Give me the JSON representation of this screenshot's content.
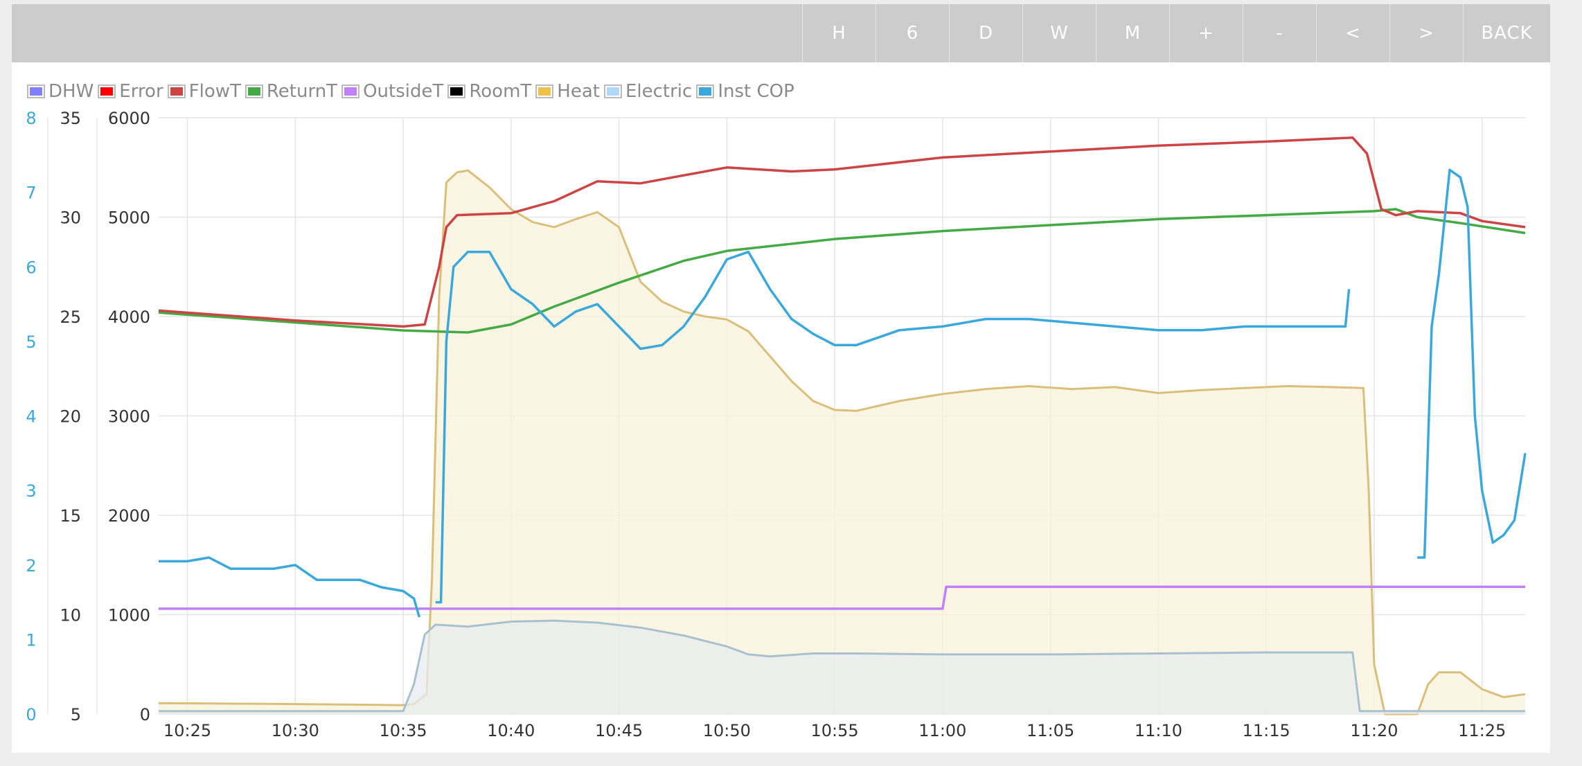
{
  "toolbar": {
    "buttons": [
      "H",
      "6",
      "D",
      "W",
      "M",
      "+",
      "-",
      "<",
      ">",
      "BACK"
    ]
  },
  "legend": [
    {
      "label": "DHW",
      "color": "#8080ff"
    },
    {
      "label": "Error",
      "color": "#ff0000"
    },
    {
      "label": "FlowT",
      "color": "#cc4444"
    },
    {
      "label": "ReturnT",
      "color": "#44aa44"
    },
    {
      "label": "OutsideT",
      "color": "#c080ff"
    },
    {
      "label": "RoomT",
      "color": "#000000"
    },
    {
      "label": "Heat",
      "color": "#eec14a"
    },
    {
      "label": "Electric",
      "color": "#b0d8f8"
    },
    {
      "label": "Inst COP",
      "color": "#3aa8dd"
    }
  ],
  "chart_data": {
    "type": "line",
    "grid": true,
    "legend_position": "top-left",
    "x_ticks": [
      "10:25",
      "10:30",
      "10:35",
      "10:40",
      "10:45",
      "10:50",
      "10:55",
      "11:00",
      "11:05",
      "11:10",
      "11:15",
      "11:20",
      "11:25"
    ],
    "x_range": [
      "10:23:40",
      "11:27:00"
    ],
    "axes": {
      "cop": {
        "ticks": [
          "0",
          "1",
          "2",
          "3",
          "4",
          "5",
          "6",
          "7",
          "8"
        ],
        "range": [
          0,
          8
        ],
        "color": "#3aa8dd"
      },
      "temp": {
        "ticks": [
          "5",
          "10",
          "15",
          "20",
          "25",
          "30",
          "35"
        ],
        "range": [
          5,
          35
        ]
      },
      "power": {
        "ticks": [
          "0",
          "1000",
          "2000",
          "3000",
          "4000",
          "5000",
          "6000"
        ],
        "range": [
          0,
          6000
        ]
      }
    },
    "series": [
      {
        "name": "Heat",
        "axis": "power",
        "style": "area",
        "color": "#d9bf7a",
        "fill": "#faf1db",
        "points": [
          [
            "10:23:40",
            110
          ],
          [
            "10:30",
            100
          ],
          [
            "10:35",
            90
          ],
          [
            "10:35:30",
            100
          ],
          [
            "10:36:05",
            200
          ],
          [
            "10:36:20",
            1350
          ],
          [
            "10:36:40",
            4200
          ],
          [
            "10:37",
            5350
          ],
          [
            "10:37:30",
            5450
          ],
          [
            "10:38",
            5470
          ],
          [
            "10:39",
            5300
          ],
          [
            "10:40",
            5080
          ],
          [
            "10:41",
            4950
          ],
          [
            "10:42",
            4900
          ],
          [
            "10:43",
            4980
          ],
          [
            "10:44",
            5050
          ],
          [
            "10:45",
            4900
          ],
          [
            "10:46",
            4350
          ],
          [
            "10:47",
            4150
          ],
          [
            "10:48",
            4050
          ],
          [
            "10:49",
            4000
          ],
          [
            "10:50",
            3970
          ],
          [
            "10:51",
            3850
          ],
          [
            "10:52",
            3600
          ],
          [
            "10:53",
            3350
          ],
          [
            "10:54",
            3150
          ],
          [
            "10:55",
            3060
          ],
          [
            "10:56",
            3050
          ],
          [
            "10:58",
            3150
          ],
          [
            "11:00",
            3220
          ],
          [
            "11:02",
            3270
          ],
          [
            "11:04",
            3300
          ],
          [
            "11:06",
            3270
          ],
          [
            "11:08",
            3290
          ],
          [
            "11:10",
            3230
          ],
          [
            "11:12",
            3260
          ],
          [
            "11:14",
            3280
          ],
          [
            "11:16",
            3300
          ],
          [
            "11:18",
            3290
          ],
          [
            "11:19:30",
            3280
          ],
          [
            "11:19:45",
            2250
          ],
          [
            "11:20",
            500
          ],
          [
            "11:20:30",
            0
          ],
          [
            "11:21",
            0
          ],
          [
            "11:22",
            -50
          ],
          [
            "11:22:30",
            300
          ],
          [
            "11:23",
            420
          ],
          [
            "11:24",
            420
          ],
          [
            "11:25",
            250
          ],
          [
            "11:26",
            170
          ],
          [
            "11:27",
            200
          ]
        ]
      },
      {
        "name": "Electric",
        "axis": "power",
        "style": "area",
        "color": "#a9c1cf",
        "fill": "#e7ecef",
        "points": [
          [
            "10:23:40",
            30
          ],
          [
            "10:35",
            30
          ],
          [
            "10:35:30",
            300
          ],
          [
            "10:36",
            800
          ],
          [
            "10:36:30",
            900
          ],
          [
            "10:38",
            880
          ],
          [
            "10:40",
            930
          ],
          [
            "10:42",
            940
          ],
          [
            "10:44",
            920
          ],
          [
            "10:46",
            870
          ],
          [
            "10:48",
            790
          ],
          [
            "10:50",
            680
          ],
          [
            "10:51",
            600
          ],
          [
            "10:52",
            580
          ],
          [
            "10:54",
            610
          ],
          [
            "10:56",
            610
          ],
          [
            "11:00",
            600
          ],
          [
            "11:05",
            600
          ],
          [
            "11:10",
            610
          ],
          [
            "11:15",
            620
          ],
          [
            "11:19",
            620
          ],
          [
            "11:19:20",
            30
          ],
          [
            "11:20",
            30
          ],
          [
            "11:27",
            30
          ]
        ]
      },
      {
        "name": "OutsideT",
        "axis": "temp",
        "style": "line",
        "color": "#c080ff",
        "points": [
          [
            "10:23:40",
            10.3
          ],
          [
            "11:00",
            10.3
          ],
          [
            "11:00:10",
            11.4
          ],
          [
            "11:27",
            11.4
          ]
        ]
      },
      {
        "name": "ReturnT",
        "axis": "temp",
        "style": "line",
        "color": "#44aa44",
        "points": [
          [
            "10:23:40",
            25.2
          ],
          [
            "10:30",
            24.7
          ],
          [
            "10:35",
            24.3
          ],
          [
            "10:38",
            24.2
          ],
          [
            "10:40",
            24.6
          ],
          [
            "10:42",
            25.5
          ],
          [
            "10:45",
            26.7
          ],
          [
            "10:48",
            27.8
          ],
          [
            "10:50",
            28.3
          ],
          [
            "10:55",
            28.9
          ],
          [
            "11:00",
            29.3
          ],
          [
            "11:05",
            29.6
          ],
          [
            "11:10",
            29.9
          ],
          [
            "11:15",
            30.1
          ],
          [
            "11:20",
            30.3
          ],
          [
            "11:21",
            30.4
          ],
          [
            "11:22",
            30.0
          ],
          [
            "11:24",
            29.7
          ],
          [
            "11:27",
            29.2
          ]
        ]
      },
      {
        "name": "FlowT",
        "axis": "temp",
        "style": "line",
        "color": "#cc4444",
        "points": [
          [
            "10:23:40",
            25.3
          ],
          [
            "10:30",
            24.8
          ],
          [
            "10:35",
            24.5
          ],
          [
            "10:36",
            24.6
          ],
          [
            "10:36:40",
            27.5
          ],
          [
            "10:37",
            29.5
          ],
          [
            "10:37:30",
            30.1
          ],
          [
            "10:40",
            30.2
          ],
          [
            "10:42",
            30.8
          ],
          [
            "10:44",
            31.8
          ],
          [
            "10:46",
            31.7
          ],
          [
            "10:48",
            32.1
          ],
          [
            "10:50",
            32.5
          ],
          [
            "10:53",
            32.3
          ],
          [
            "10:55",
            32.4
          ],
          [
            "11:00",
            33.0
          ],
          [
            "11:05",
            33.3
          ],
          [
            "11:10",
            33.6
          ],
          [
            "11:15",
            33.8
          ],
          [
            "11:19",
            34.0
          ],
          [
            "11:19:40",
            33.2
          ],
          [
            "11:20:20",
            30.4
          ],
          [
            "11:21",
            30.1
          ],
          [
            "11:22",
            30.3
          ],
          [
            "11:24",
            30.2
          ],
          [
            "11:25",
            29.8
          ],
          [
            "11:27",
            29.5
          ]
        ]
      },
      {
        "name": "Inst COP",
        "axis": "cop",
        "style": "line",
        "color": "#3aa8dd",
        "points": [
          [
            "10:23:40",
            2.05
          ],
          [
            "10:25",
            2.05
          ],
          [
            "10:26",
            2.1
          ],
          [
            "10:27",
            1.95
          ],
          [
            "10:28",
            1.95
          ],
          [
            "10:29",
            1.95
          ],
          [
            "10:30",
            2.0
          ],
          [
            "10:31",
            1.8
          ],
          [
            "10:32",
            1.8
          ],
          [
            "10:33",
            1.8
          ],
          [
            "10:34",
            1.7
          ],
          [
            "10:35",
            1.65
          ],
          [
            "10:35:30",
            1.55
          ],
          [
            "10:35:45",
            1.3
          ],
          null,
          [
            "10:36:30",
            1.5
          ],
          [
            "10:36:45",
            1.5
          ],
          [
            "10:37",
            5.0
          ],
          [
            "10:37:20",
            6.0
          ],
          [
            "10:38",
            6.2
          ],
          [
            "10:39",
            6.2
          ],
          [
            "10:40",
            5.7
          ],
          [
            "10:41",
            5.5
          ],
          [
            "10:42",
            5.2
          ],
          [
            "10:43",
            5.4
          ],
          [
            "10:44",
            5.5
          ],
          [
            "10:45",
            5.2
          ],
          [
            "10:46",
            4.9
          ],
          [
            "10:47",
            4.95
          ],
          [
            "10:48",
            5.2
          ],
          [
            "10:49",
            5.6
          ],
          [
            "10:50",
            6.1
          ],
          [
            "10:51",
            6.2
          ],
          [
            "10:52",
            5.7
          ],
          [
            "10:53",
            5.3
          ],
          [
            "10:54",
            5.1
          ],
          [
            "10:55",
            4.95
          ],
          [
            "10:56",
            4.95
          ],
          [
            "10:58",
            5.15
          ],
          [
            "11:00",
            5.2
          ],
          [
            "11:02",
            5.3
          ],
          [
            "11:04",
            5.3
          ],
          [
            "11:06",
            5.25
          ],
          [
            "11:08",
            5.2
          ],
          [
            "11:10",
            5.15
          ],
          [
            "11:12",
            5.15
          ],
          [
            "11:14",
            5.2
          ],
          [
            "11:16",
            5.2
          ],
          [
            "11:18",
            5.2
          ],
          [
            "11:18:40",
            5.2
          ],
          [
            "11:18:50",
            5.7
          ],
          null,
          [
            "11:22",
            2.1
          ],
          [
            "11:22:20",
            2.1
          ],
          [
            "11:22:40",
            5.2
          ],
          [
            "11:23",
            5.9
          ],
          [
            "11:23:30",
            7.3
          ],
          [
            "11:24",
            7.2
          ],
          [
            "11:24:20",
            6.8
          ],
          [
            "11:24:40",
            4.0
          ],
          [
            "11:25",
            3.0
          ],
          [
            "11:25:30",
            2.3
          ],
          [
            "11:26",
            2.4
          ],
          [
            "11:26:30",
            2.6
          ],
          [
            "11:27",
            3.5
          ]
        ]
      }
    ]
  }
}
